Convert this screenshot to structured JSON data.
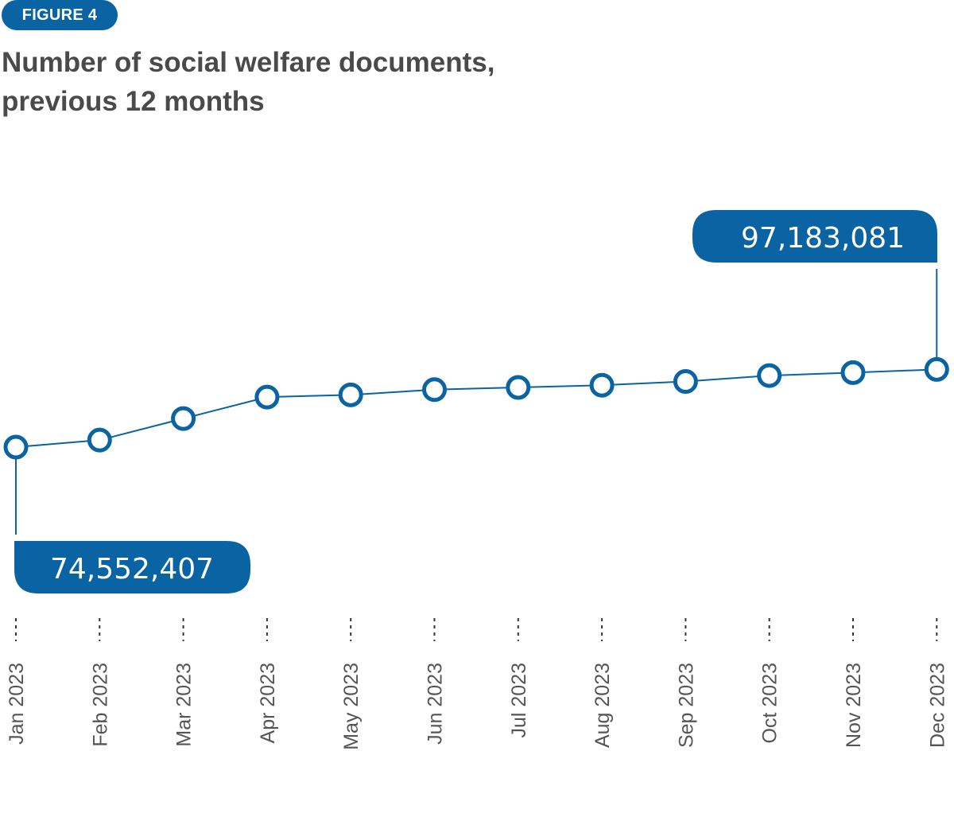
{
  "figure_label": "FIGURE 4",
  "title_line1": "Number of social welfare documents,",
  "title_line2": "previous 12 months",
  "colors": {
    "accent": "#0a63a3",
    "title_text": "#4a4a4a",
    "tick_text": "#555555",
    "marker_fill": "#ffffff"
  },
  "chart_data": {
    "type": "line",
    "title": "Number of social welfare documents, previous 12 months",
    "xlabel": "",
    "ylabel": "",
    "categories": [
      "Jan 2023",
      "Feb 2023",
      "Mar 2023",
      "Apr 2023",
      "May 2023",
      "Jun 2023",
      "Jul 2023",
      "Aug 2023",
      "Sep 2023",
      "Oct 2023",
      "Nov 2023",
      "Dec 2023"
    ],
    "values": [
      74552407,
      75500000,
      78400000,
      81300000,
      81600000,
      82300000,
      82600000,
      82900000,
      83400000,
      84200000,
      84600000,
      97183081
    ],
    "grid": false,
    "legend": "none",
    "annotations": [
      {
        "category": "Jan 2023",
        "text": "74,552,407",
        "placement": "below"
      },
      {
        "category": "Dec 2023",
        "text": "97,183,081",
        "placement": "above"
      }
    ]
  }
}
